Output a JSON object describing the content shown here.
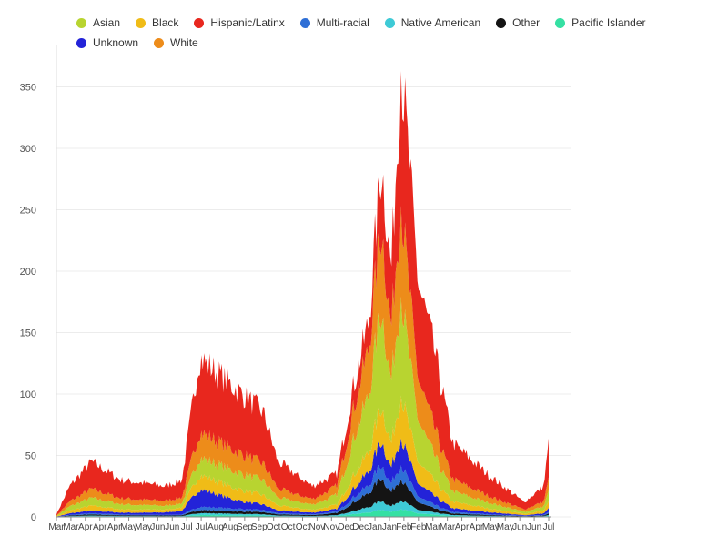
{
  "chart_data": {
    "type": "area",
    "stacked": true,
    "title": "",
    "xlabel": "",
    "ylabel": "",
    "ylim": [
      0,
      380
    ],
    "yticks": [
      0,
      50,
      100,
      150,
      200,
      250,
      300,
      350
    ],
    "grid": true,
    "legend_position": "top-left",
    "x_tick_labels": [
      "Mar",
      "Mar",
      "Apr",
      "Apr",
      "Apr",
      "May",
      "May",
      "Jun",
      "Jun",
      "Jul",
      "Jul",
      "Aug",
      "Aug",
      "Sep",
      "Sep",
      "Oct",
      "Oct",
      "Oct",
      "Nov",
      "Nov",
      "Dec",
      "Dec",
      "Jan",
      "Jan",
      "Feb",
      "Feb",
      "Mar",
      "Mar",
      "Apr",
      "Apr",
      "May",
      "May",
      "Jun",
      "Jun",
      "Jul"
    ],
    "x_peaks": [
      0,
      0.027,
      0.071,
      0.131,
      0.22,
      0.255,
      0.29,
      0.42,
      0.45,
      0.52,
      0.57,
      0.6,
      0.635,
      0.66,
      0.68,
      0.7,
      0.735,
      0.76,
      0.805,
      0.875,
      0.95,
      0.99,
      1.0
    ],
    "total_peaks": [
      2,
      25,
      45,
      30,
      25,
      30,
      130,
      85,
      45,
      25,
      35,
      100,
      160,
      290,
      200,
      370,
      190,
      150,
      60,
      35,
      12,
      25,
      60
    ],
    "legend": [
      {
        "name": "Asian",
        "color": "#b8d430"
      },
      {
        "name": "Black",
        "color": "#f0bc17"
      },
      {
        "name": "Hispanic/Latinx",
        "color": "#e8271e"
      },
      {
        "name": "Multi-racial",
        "color": "#2e6fd6"
      },
      {
        "name": "Native American",
        "color": "#3ecad6"
      },
      {
        "name": "Other",
        "color": "#141414"
      },
      {
        "name": "Pacific Islander",
        "color": "#35e0a3"
      },
      {
        "name": "Unknown",
        "color": "#2323d8"
      },
      {
        "name": "White",
        "color": "#ed8c1a"
      }
    ],
    "stack_order": [
      "Pacific Islander",
      "Native American",
      "Other",
      "Multi-racial",
      "Unknown",
      "Black",
      "Asian",
      "White",
      "Hispanic/Latinx"
    ]
  }
}
